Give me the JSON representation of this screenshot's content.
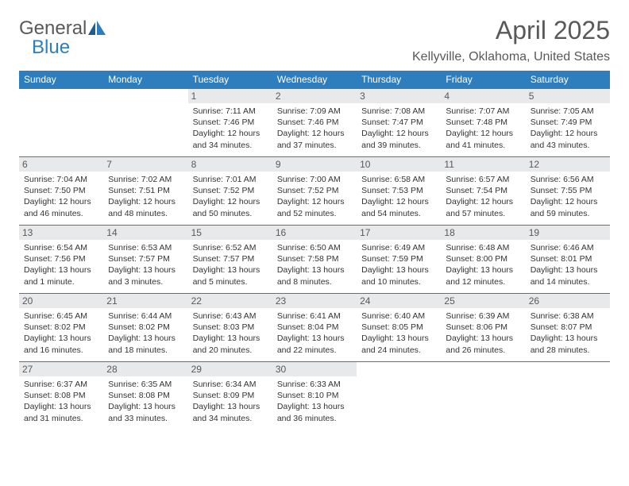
{
  "logo": {
    "line1": "General",
    "line2": "Blue"
  },
  "title": "April 2025",
  "location": "Kellyville, Oklahoma, United States",
  "colors": {
    "brand_blue": "#2e7dbd",
    "text_gray": "#58595b",
    "day_header_bg": "#e8e9ea",
    "body_text": "#333333",
    "border": "#2e7dbd"
  },
  "weekdays": [
    "Sunday",
    "Monday",
    "Tuesday",
    "Wednesday",
    "Thursday",
    "Friday",
    "Saturday"
  ],
  "weeks": [
    [
      null,
      null,
      {
        "n": "1",
        "sr": "7:11 AM",
        "ss": "7:46 PM",
        "dl": "12 hours and 34 minutes."
      },
      {
        "n": "2",
        "sr": "7:09 AM",
        "ss": "7:46 PM",
        "dl": "12 hours and 37 minutes."
      },
      {
        "n": "3",
        "sr": "7:08 AM",
        "ss": "7:47 PM",
        "dl": "12 hours and 39 minutes."
      },
      {
        "n": "4",
        "sr": "7:07 AM",
        "ss": "7:48 PM",
        "dl": "12 hours and 41 minutes."
      },
      {
        "n": "5",
        "sr": "7:05 AM",
        "ss": "7:49 PM",
        "dl": "12 hours and 43 minutes."
      }
    ],
    [
      {
        "n": "6",
        "sr": "7:04 AM",
        "ss": "7:50 PM",
        "dl": "12 hours and 46 minutes."
      },
      {
        "n": "7",
        "sr": "7:02 AM",
        "ss": "7:51 PM",
        "dl": "12 hours and 48 minutes."
      },
      {
        "n": "8",
        "sr": "7:01 AM",
        "ss": "7:52 PM",
        "dl": "12 hours and 50 minutes."
      },
      {
        "n": "9",
        "sr": "7:00 AM",
        "ss": "7:52 PM",
        "dl": "12 hours and 52 minutes."
      },
      {
        "n": "10",
        "sr": "6:58 AM",
        "ss": "7:53 PM",
        "dl": "12 hours and 54 minutes."
      },
      {
        "n": "11",
        "sr": "6:57 AM",
        "ss": "7:54 PM",
        "dl": "12 hours and 57 minutes."
      },
      {
        "n": "12",
        "sr": "6:56 AM",
        "ss": "7:55 PM",
        "dl": "12 hours and 59 minutes."
      }
    ],
    [
      {
        "n": "13",
        "sr": "6:54 AM",
        "ss": "7:56 PM",
        "dl": "13 hours and 1 minute."
      },
      {
        "n": "14",
        "sr": "6:53 AM",
        "ss": "7:57 PM",
        "dl": "13 hours and 3 minutes."
      },
      {
        "n": "15",
        "sr": "6:52 AM",
        "ss": "7:57 PM",
        "dl": "13 hours and 5 minutes."
      },
      {
        "n": "16",
        "sr": "6:50 AM",
        "ss": "7:58 PM",
        "dl": "13 hours and 8 minutes."
      },
      {
        "n": "17",
        "sr": "6:49 AM",
        "ss": "7:59 PM",
        "dl": "13 hours and 10 minutes."
      },
      {
        "n": "18",
        "sr": "6:48 AM",
        "ss": "8:00 PM",
        "dl": "13 hours and 12 minutes."
      },
      {
        "n": "19",
        "sr": "6:46 AM",
        "ss": "8:01 PM",
        "dl": "13 hours and 14 minutes."
      }
    ],
    [
      {
        "n": "20",
        "sr": "6:45 AM",
        "ss": "8:02 PM",
        "dl": "13 hours and 16 minutes."
      },
      {
        "n": "21",
        "sr": "6:44 AM",
        "ss": "8:02 PM",
        "dl": "13 hours and 18 minutes."
      },
      {
        "n": "22",
        "sr": "6:43 AM",
        "ss": "8:03 PM",
        "dl": "13 hours and 20 minutes."
      },
      {
        "n": "23",
        "sr": "6:41 AM",
        "ss": "8:04 PM",
        "dl": "13 hours and 22 minutes."
      },
      {
        "n": "24",
        "sr": "6:40 AM",
        "ss": "8:05 PM",
        "dl": "13 hours and 24 minutes."
      },
      {
        "n": "25",
        "sr": "6:39 AM",
        "ss": "8:06 PM",
        "dl": "13 hours and 26 minutes."
      },
      {
        "n": "26",
        "sr": "6:38 AM",
        "ss": "8:07 PM",
        "dl": "13 hours and 28 minutes."
      }
    ],
    [
      {
        "n": "27",
        "sr": "6:37 AM",
        "ss": "8:08 PM",
        "dl": "13 hours and 31 minutes."
      },
      {
        "n": "28",
        "sr": "6:35 AM",
        "ss": "8:08 PM",
        "dl": "13 hours and 33 minutes."
      },
      {
        "n": "29",
        "sr": "6:34 AM",
        "ss": "8:09 PM",
        "dl": "13 hours and 34 minutes."
      },
      {
        "n": "30",
        "sr": "6:33 AM",
        "ss": "8:10 PM",
        "dl": "13 hours and 36 minutes."
      },
      null,
      null,
      null
    ]
  ],
  "labels": {
    "sunrise": "Sunrise:",
    "sunset": "Sunset:",
    "daylight": "Daylight:"
  }
}
